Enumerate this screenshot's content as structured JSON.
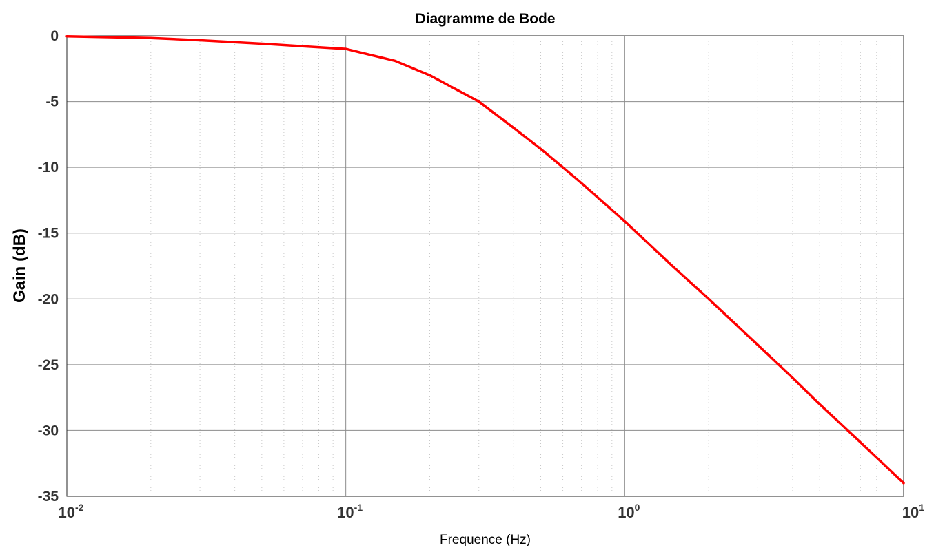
{
  "chart_data": {
    "type": "line",
    "title": "Diagramme de Bode",
    "xlabel": "Frequence  (Hz)",
    "ylabel": "Gain (dB)",
    "x_scale": "log",
    "xlim": [
      0.01,
      10
    ],
    "ylim": [
      -35,
      0
    ],
    "grid": true,
    "minor_grid": true,
    "y_ticks": [
      "0",
      "-5",
      "-10",
      "-15",
      "-20",
      "-25",
      "-30",
      "-35"
    ],
    "x_ticks": [
      {
        "base": "10",
        "exp": "-2"
      },
      {
        "base": "10",
        "exp": "-1"
      },
      {
        "base": "10",
        "exp": "0"
      },
      {
        "base": "10",
        "exp": "1"
      }
    ],
    "series": [
      {
        "color": "#ff0000",
        "x": [
          0.01,
          0.02,
          0.03,
          0.05,
          0.07,
          0.1,
          0.15,
          0.2,
          0.3,
          0.4,
          0.5,
          0.6,
          0.7,
          1,
          1.5,
          2,
          3,
          4,
          5,
          7,
          10
        ],
        "y": [
          -0.04,
          -0.17,
          -0.34,
          -0.6,
          -0.8,
          -1.0,
          -1.9,
          -3.0,
          -5.0,
          -7.0,
          -8.6,
          -10.0,
          -11.2,
          -14.1,
          -17.6,
          -20.0,
          -23.5,
          -26.0,
          -28.0,
          -30.9,
          -34.0
        ]
      }
    ]
  }
}
